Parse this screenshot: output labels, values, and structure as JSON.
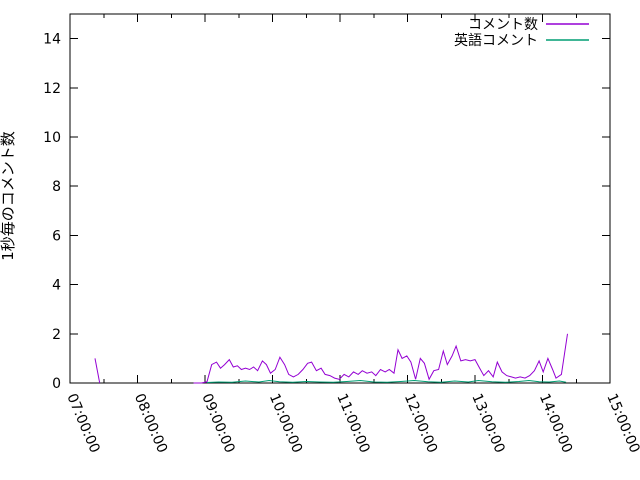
{
  "chart_data": {
    "type": "line",
    "title": "",
    "xlabel": "",
    "ylabel": "1秒毎のコメント数",
    "grid": false,
    "axis_color": "#000000",
    "background_color": "#ffffff",
    "x_axis": {
      "unit": "time-of-day",
      "start_hour": 7,
      "end_hour": 15,
      "tick_labels": [
        "07:00:00",
        "08:00:00",
        "09:00:00",
        "10:00:00",
        "11:00:00",
        "12:00:00",
        "13:00:00",
        "14:00:00",
        "15:00:00"
      ],
      "minor_tick_interval_hours": 0.5,
      "label_rotation_deg": 67
    },
    "y_axis": {
      "min": 0,
      "max": 15,
      "ticks": [
        0,
        2,
        4,
        6,
        8,
        10,
        12,
        14
      ]
    },
    "legend": {
      "position": "top-right-inside"
    },
    "series": [
      {
        "name": "コメント数",
        "color": "#9400d3",
        "segments": [
          [
            [
              7.37,
              1.0
            ],
            [
              7.44,
              0.0
            ]
          ],
          [
            [
              8.83,
              0
            ],
            [
              8.95,
              0
            ],
            [
              9.03,
              0.05
            ],
            [
              9.1,
              0.75
            ],
            [
              9.17,
              0.85
            ],
            [
              9.23,
              0.6
            ],
            [
              9.29,
              0.75
            ],
            [
              9.36,
              0.95
            ],
            [
              9.42,
              0.65
            ],
            [
              9.48,
              0.7
            ],
            [
              9.54,
              0.55
            ],
            [
              9.6,
              0.6
            ],
            [
              9.66,
              0.55
            ],
            [
              9.72,
              0.65
            ],
            [
              9.78,
              0.5
            ],
            [
              9.85,
              0.9
            ],
            [
              9.91,
              0.75
            ],
            [
              9.97,
              0.4
            ],
            [
              10.04,
              0.55
            ],
            [
              10.11,
              1.05
            ],
            [
              10.18,
              0.75
            ],
            [
              10.24,
              0.35
            ],
            [
              10.31,
              0.25
            ],
            [
              10.38,
              0.35
            ],
            [
              10.45,
              0.55
            ],
            [
              10.52,
              0.8
            ],
            [
              10.58,
              0.85
            ],
            [
              10.65,
              0.5
            ],
            [
              10.72,
              0.6
            ],
            [
              10.78,
              0.35
            ],
            [
              10.85,
              0.3
            ],
            [
              10.92,
              0.2
            ],
            [
              10.99,
              0.15
            ],
            [
              11.06,
              0.35
            ],
            [
              11.13,
              0.25
            ],
            [
              11.2,
              0.45
            ],
            [
              11.27,
              0.35
            ],
            [
              11.33,
              0.5
            ],
            [
              11.4,
              0.4
            ],
            [
              11.47,
              0.45
            ],
            [
              11.53,
              0.3
            ],
            [
              11.6,
              0.55
            ],
            [
              11.67,
              0.45
            ],
            [
              11.73,
              0.55
            ],
            [
              11.8,
              0.4
            ],
            [
              11.86,
              1.35
            ],
            [
              11.92,
              1.0
            ],
            [
              11.99,
              1.1
            ],
            [
              12.05,
              0.85
            ],
            [
              12.12,
              0.15
            ],
            [
              12.19,
              1.0
            ],
            [
              12.25,
              0.8
            ],
            [
              12.32,
              0.15
            ],
            [
              12.39,
              0.5
            ],
            [
              12.46,
              0.55
            ],
            [
              12.53,
              1.3
            ],
            [
              12.59,
              0.75
            ],
            [
              12.66,
              1.1
            ],
            [
              12.72,
              1.5
            ],
            [
              12.79,
              0.9
            ],
            [
              12.86,
              0.95
            ],
            [
              12.93,
              0.9
            ],
            [
              13.0,
              0.95
            ],
            [
              13.07,
              0.6
            ],
            [
              13.13,
              0.3
            ],
            [
              13.2,
              0.5
            ],
            [
              13.27,
              0.25
            ],
            [
              13.33,
              0.85
            ],
            [
              13.4,
              0.45
            ],
            [
              13.47,
              0.3
            ],
            [
              13.54,
              0.25
            ],
            [
              13.6,
              0.2
            ],
            [
              13.67,
              0.25
            ],
            [
              13.74,
              0.2
            ],
            [
              13.81,
              0.3
            ],
            [
              13.88,
              0.5
            ],
            [
              13.95,
              0.9
            ],
            [
              14.01,
              0.45
            ],
            [
              14.08,
              1.0
            ],
            [
              14.15,
              0.55
            ],
            [
              14.2,
              0.2
            ],
            [
              14.28,
              0.35
            ],
            [
              14.37,
              2.0
            ]
          ]
        ]
      },
      {
        "name": "英語コメント",
        "color": "#009e73",
        "segments": [
          [
            [
              9.03,
              0.02
            ],
            [
              9.2,
              0.04
            ],
            [
              9.4,
              0.03
            ],
            [
              9.6,
              0.08
            ],
            [
              9.8,
              0.04
            ],
            [
              9.95,
              0.1
            ],
            [
              10.1,
              0.05
            ],
            [
              10.3,
              0.03
            ],
            [
              10.5,
              0.06
            ],
            [
              10.7,
              0.04
            ],
            [
              10.9,
              0.03
            ],
            [
              11.1,
              0.06
            ],
            [
              11.3,
              0.1
            ],
            [
              11.5,
              0.04
            ],
            [
              11.7,
              0.03
            ],
            [
              11.9,
              0.06
            ],
            [
              12.1,
              0.1
            ],
            [
              12.3,
              0.05
            ],
            [
              12.5,
              0.03
            ],
            [
              12.7,
              0.08
            ],
            [
              12.9,
              0.04
            ],
            [
              13.05,
              0.1
            ],
            [
              13.25,
              0.05
            ],
            [
              13.45,
              0.03
            ],
            [
              13.65,
              0.06
            ],
            [
              13.8,
              0.1
            ],
            [
              13.95,
              0.05
            ],
            [
              14.1,
              0.04
            ],
            [
              14.25,
              0.08
            ],
            [
              14.35,
              0.03
            ]
          ]
        ]
      }
    ]
  }
}
